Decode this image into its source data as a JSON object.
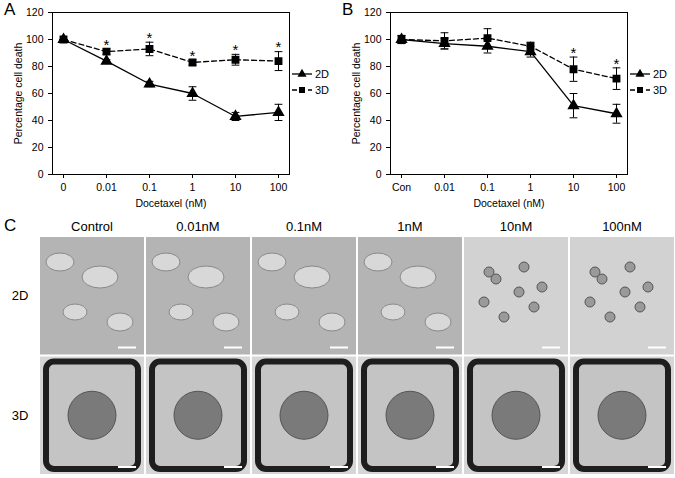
{
  "chart_data": [
    {
      "type": "line",
      "title": "A",
      "xlabel": "Docetaxel (nM)",
      "ylabel": "Percentage cell death",
      "categories": [
        "0",
        "0.01",
        "0.1",
        "1",
        "10",
        "100"
      ],
      "ylim": [
        0,
        120
      ],
      "yticks": [
        0,
        20,
        40,
        60,
        80,
        100,
        120
      ],
      "grid": false,
      "legend": "right",
      "series": [
        {
          "name": "2D",
          "color": "#000000",
          "marker": "triangle",
          "line_style": "solid",
          "values": [
            100,
            84,
            67,
            60,
            43,
            46
          ],
          "errors": [
            0,
            1,
            2,
            5,
            3,
            6
          ]
        },
        {
          "name": "3D",
          "color": "#000000",
          "marker": "square",
          "line_style": "dashed",
          "values": [
            100,
            91,
            93,
            83,
            85,
            84
          ],
          "errors": [
            0,
            2,
            5,
            2,
            4,
            7
          ]
        }
      ],
      "annotations": [
        {
          "category": "0.01",
          "series": "3D",
          "text": "*"
        },
        {
          "category": "0.1",
          "series": "3D",
          "text": "*"
        },
        {
          "category": "1",
          "series": "3D",
          "text": "*"
        },
        {
          "category": "10",
          "series": "3D",
          "text": "*"
        },
        {
          "category": "100",
          "series": "3D",
          "text": "*"
        }
      ]
    },
    {
      "type": "line",
      "title": "B",
      "xlabel": "Docetaxel (nM)",
      "ylabel": "Percentage cell death",
      "categories": [
        "Con",
        "0.01",
        "0.1",
        "1",
        "10",
        "100"
      ],
      "ylim": [
        0,
        120
      ],
      "yticks": [
        0,
        20,
        40,
        60,
        80,
        100,
        120
      ],
      "grid": false,
      "legend": "right",
      "series": [
        {
          "name": "2D",
          "color": "#000000",
          "marker": "triangle",
          "line_style": "solid",
          "values": [
            100,
            97,
            95,
            91,
            51,
            45
          ],
          "errors": [
            3,
            4,
            5,
            4,
            9,
            7
          ]
        },
        {
          "name": "3D",
          "color": "#000000",
          "marker": "square",
          "line_style": "dashed",
          "values": [
            100,
            99,
            101,
            95,
            78,
            71
          ],
          "errors": [
            3,
            6,
            7,
            3,
            9,
            8
          ]
        }
      ],
      "annotations": [
        {
          "category": "10",
          "series": "3D",
          "text": "*"
        },
        {
          "category": "100",
          "series": "3D",
          "text": "*"
        }
      ]
    }
  ],
  "panel_c": {
    "title": "C",
    "columns": [
      "Control",
      "0.01nM",
      "0.1nM",
      "1nM",
      "10nM",
      "100nM"
    ],
    "rows": [
      "2D",
      "3D"
    ]
  }
}
